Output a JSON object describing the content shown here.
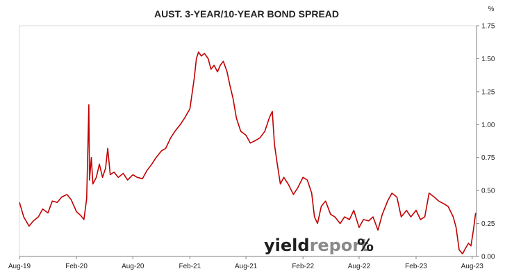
{
  "chart_data": {
    "type": "line",
    "title": "AUST. 3-YEAR/10-YEAR BOND SPREAD",
    "ylabel": "%",
    "xlabel": "",
    "ylim": [
      0,
      1.75
    ],
    "yticks": [
      "0.00",
      "0.25",
      "0.50",
      "0.75",
      "1.00",
      "1.25",
      "1.50",
      "1.75"
    ],
    "xticks": [
      "Aug-19",
      "Feb-20",
      "Aug-20",
      "Feb-21",
      "Aug-21",
      "Feb-22",
      "Aug-22",
      "Feb-23",
      "Aug-23"
    ],
    "grid": false,
    "y_axis_side": "right",
    "series_color": "#c00000",
    "series": [
      {
        "values": [
          [
            "2019-08-01",
            0.41
          ],
          [
            "2019-08-15",
            0.3
          ],
          [
            "2019-09-01",
            0.23
          ],
          [
            "2019-09-15",
            0.27
          ],
          [
            "2019-10-01",
            0.3
          ],
          [
            "2019-10-15",
            0.36
          ],
          [
            "2019-11-01",
            0.33
          ],
          [
            "2019-11-15",
            0.42
          ],
          [
            "2019-12-01",
            0.41
          ],
          [
            "2019-12-15",
            0.45
          ],
          [
            "2020-01-01",
            0.47
          ],
          [
            "2020-01-15",
            0.43
          ],
          [
            "2020-02-01",
            0.34
          ],
          [
            "2020-02-15",
            0.31
          ],
          [
            "2020-02-25",
            0.28
          ],
          [
            "2020-03-05",
            0.44
          ],
          [
            "2020-03-12",
            1.15
          ],
          [
            "2020-03-14",
            0.58
          ],
          [
            "2020-03-20",
            0.75
          ],
          [
            "2020-03-25",
            0.55
          ],
          [
            "2020-04-05",
            0.6
          ],
          [
            "2020-04-15",
            0.7
          ],
          [
            "2020-04-25",
            0.6
          ],
          [
            "2020-05-05",
            0.67
          ],
          [
            "2020-05-12",
            0.82
          ],
          [
            "2020-05-20",
            0.62
          ],
          [
            "2020-06-01",
            0.64
          ],
          [
            "2020-06-15",
            0.6
          ],
          [
            "2020-07-01",
            0.63
          ],
          [
            "2020-07-15",
            0.58
          ],
          [
            "2020-08-01",
            0.62
          ],
          [
            "2020-08-15",
            0.6
          ],
          [
            "2020-09-01",
            0.59
          ],
          [
            "2020-09-15",
            0.65
          ],
          [
            "2020-10-01",
            0.7
          ],
          [
            "2020-10-15",
            0.75
          ],
          [
            "2020-11-01",
            0.8
          ],
          [
            "2020-11-15",
            0.82
          ],
          [
            "2020-12-01",
            0.9
          ],
          [
            "2020-12-15",
            0.95
          ],
          [
            "2021-01-01",
            1.0
          ],
          [
            "2021-01-15",
            1.05
          ],
          [
            "2021-02-01",
            1.12
          ],
          [
            "2021-02-15",
            1.35
          ],
          [
            "2021-02-22",
            1.5
          ],
          [
            "2021-03-01",
            1.55
          ],
          [
            "2021-03-10",
            1.52
          ],
          [
            "2021-03-20",
            1.54
          ],
          [
            "2021-04-01",
            1.5
          ],
          [
            "2021-04-10",
            1.42
          ],
          [
            "2021-04-20",
            1.45
          ],
          [
            "2021-05-01",
            1.4
          ],
          [
            "2021-05-10",
            1.45
          ],
          [
            "2021-05-20",
            1.48
          ],
          [
            "2021-06-01",
            1.4
          ],
          [
            "2021-06-10",
            1.3
          ],
          [
            "2021-06-20",
            1.2
          ],
          [
            "2021-07-01",
            1.05
          ],
          [
            "2021-07-15",
            0.95
          ],
          [
            "2021-08-01",
            0.92
          ],
          [
            "2021-08-15",
            0.86
          ],
          [
            "2021-09-01",
            0.88
          ],
          [
            "2021-09-15",
            0.9
          ],
          [
            "2021-10-01",
            0.95
          ],
          [
            "2021-10-15",
            1.05
          ],
          [
            "2021-10-25",
            1.1
          ],
          [
            "2021-11-01",
            0.85
          ],
          [
            "2021-11-10",
            0.7
          ],
          [
            "2021-11-20",
            0.55
          ],
          [
            "2021-12-01",
            0.6
          ],
          [
            "2021-12-15",
            0.55
          ],
          [
            "2022-01-01",
            0.47
          ],
          [
            "2022-01-15",
            0.52
          ],
          [
            "2022-02-01",
            0.6
          ],
          [
            "2022-02-15",
            0.58
          ],
          [
            "2022-03-01",
            0.48
          ],
          [
            "2022-03-10",
            0.3
          ],
          [
            "2022-03-20",
            0.25
          ],
          [
            "2022-04-01",
            0.38
          ],
          [
            "2022-04-15",
            0.42
          ],
          [
            "2022-05-01",
            0.32
          ],
          [
            "2022-05-15",
            0.3
          ],
          [
            "2022-06-01",
            0.25
          ],
          [
            "2022-06-15",
            0.3
          ],
          [
            "2022-07-01",
            0.28
          ],
          [
            "2022-07-15",
            0.35
          ],
          [
            "2022-08-01",
            0.22
          ],
          [
            "2022-08-15",
            0.28
          ],
          [
            "2022-09-01",
            0.27
          ],
          [
            "2022-09-15",
            0.3
          ],
          [
            "2022-10-01",
            0.2
          ],
          [
            "2022-10-15",
            0.32
          ],
          [
            "2022-11-01",
            0.42
          ],
          [
            "2022-11-15",
            0.48
          ],
          [
            "2022-12-01",
            0.45
          ],
          [
            "2022-12-15",
            0.3
          ],
          [
            "2023-01-01",
            0.35
          ],
          [
            "2023-01-15",
            0.3
          ],
          [
            "2023-02-01",
            0.35
          ],
          [
            "2023-02-15",
            0.28
          ],
          [
            "2023-03-01",
            0.3
          ],
          [
            "2023-03-15",
            0.48
          ],
          [
            "2023-04-01",
            0.45
          ],
          [
            "2023-04-15",
            0.42
          ],
          [
            "2023-05-01",
            0.4
          ],
          [
            "2023-05-15",
            0.38
          ],
          [
            "2023-06-01",
            0.3
          ],
          [
            "2023-06-10",
            0.22
          ],
          [
            "2023-06-20",
            0.05
          ],
          [
            "2023-07-01",
            0.02
          ],
          [
            "2023-07-10",
            0.06
          ],
          [
            "2023-07-20",
            0.1
          ],
          [
            "2023-07-28",
            0.08
          ],
          [
            "2023-08-05",
            0.2
          ],
          [
            "2023-08-12",
            0.33
          ]
        ]
      }
    ]
  },
  "watermark": {
    "part1": "yield",
    "part2": "report",
    "symbol": "%",
    "symbol_colors": [
      "#2e8b2e",
      "#c00000"
    ]
  }
}
